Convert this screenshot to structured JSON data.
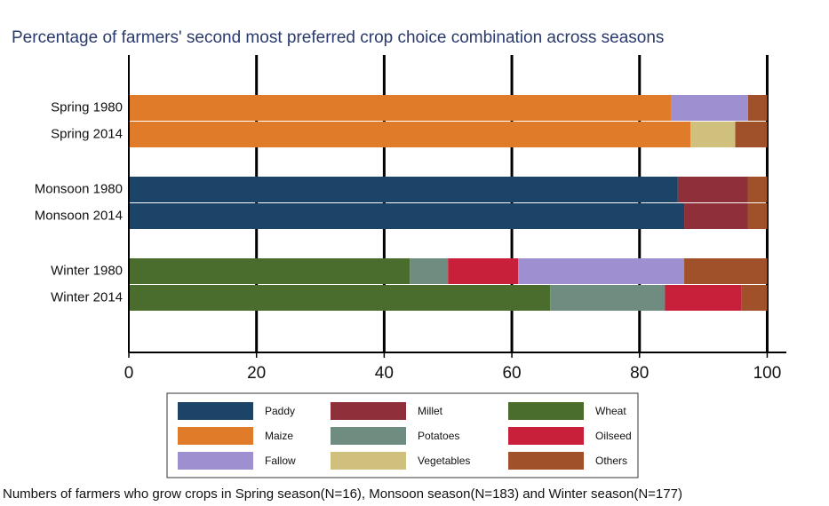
{
  "chart_data": {
    "type": "stacked-barh",
    "title": "Percentage of farmers' second most preferred crop choice combination across seasons",
    "note": "Numbers of farmers who grow crops in Spring season(N=16), Monsoon season(N=183) and Winter season(N=177)",
    "categories": [
      "Spring 1980",
      "Spring 2014",
      "Monsoon 1980",
      "Monsoon 2014",
      "Winter 1980",
      "Winter 2014"
    ],
    "series": [
      {
        "name": "Paddy",
        "color": "#1b4468",
        "values": [
          0,
          0,
          86,
          87,
          0,
          0
        ]
      },
      {
        "name": "Millet",
        "color": "#8e2f3a",
        "values": [
          0,
          0,
          11,
          10,
          0,
          0
        ]
      },
      {
        "name": "Wheat",
        "color": "#4a6d2e",
        "values": [
          0,
          0,
          0,
          0,
          44,
          66
        ]
      },
      {
        "name": "Maize",
        "color": "#e07b2a",
        "values": [
          85,
          88,
          0,
          0,
          0,
          0
        ]
      },
      {
        "name": "Potatoes",
        "color": "#6e8c80",
        "values": [
          0,
          0,
          0,
          0,
          6,
          18
        ]
      },
      {
        "name": "Oilseed",
        "color": "#c8203a",
        "values": [
          0,
          0,
          0,
          0,
          11,
          12
        ]
      },
      {
        "name": "Fallow",
        "color": "#9d8fd0",
        "values": [
          12,
          0,
          0,
          0,
          26,
          0
        ]
      },
      {
        "name": "Vegetables",
        "color": "#cfc07e",
        "values": [
          0,
          7,
          0,
          0,
          0,
          0
        ]
      },
      {
        "name": "Others",
        "color": "#a1512a",
        "values": [
          3,
          5,
          3,
          3,
          13,
          4
        ]
      }
    ],
    "xlim": [
      0,
      103
    ],
    "xticks": [
      0,
      20,
      40,
      60,
      80,
      100
    ],
    "grid": true
  }
}
